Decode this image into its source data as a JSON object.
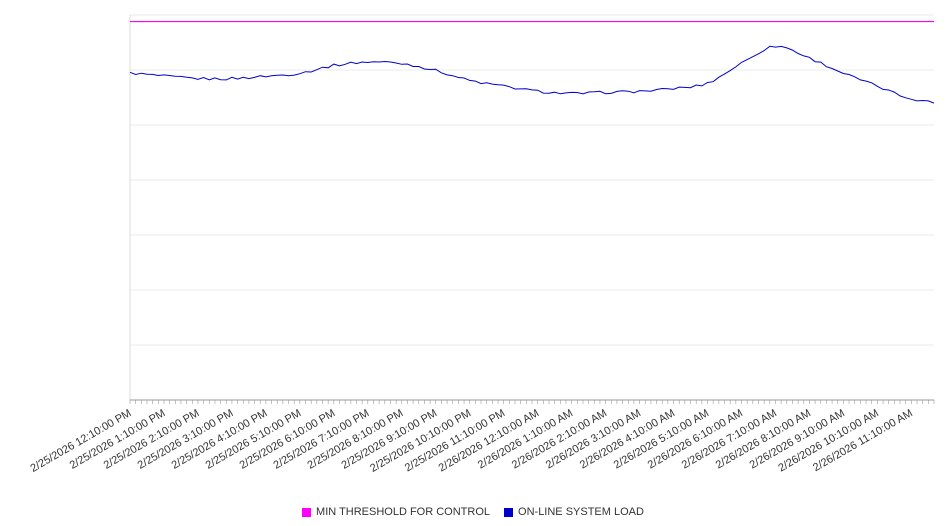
{
  "chart_data": {
    "type": "line",
    "title": "",
    "x_axis": {
      "tick_interval_minutes": 10,
      "label_interval_minutes": 60,
      "minor_tick_count": 143,
      "categories": [
        "2/25/2026 12:10:00 PM",
        "2/25/2026 1:10:00 PM",
        "2/25/2026 2:10:00 PM",
        "2/25/2026 3:10:00 PM",
        "2/25/2026 4:10:00 PM",
        "2/25/2026 5:10:00 PM",
        "2/25/2026 6:10:00 PM",
        "2/25/2026 7:10:00 PM",
        "2/25/2026 8:10:00 PM",
        "2/25/2026 9:10:00 PM",
        "2/25/2026 10:10:00 PM",
        "2/25/2026 11:10:00 PM",
        "2/26/2026 12:10:00 AM",
        "2/26/2026 1:10:00 AM",
        "2/26/2026 2:10:00 AM",
        "2/26/2026 3:10:00 AM",
        "2/26/2026 4:10:00 AM",
        "2/26/2026 5:10:00 AM",
        "2/26/2026 6:10:00 AM",
        "2/26/2026 7:10:00 AM",
        "2/26/2026 8:10:00 AM",
        "2/26/2026 9:10:00 AM",
        "2/26/2026 10:10:00 AM",
        "2/26/2026 11:10:00 AM"
      ]
    },
    "y_axis": {
      "ylim": [
        0,
        100
      ],
      "labels_visible": false,
      "grid_divisions": 7,
      "grid_on": true
    },
    "series": [
      {
        "name": "MIN THRESHOLD FOR CONTROL",
        "kind": "threshold",
        "color": "#ff00ff",
        "value": 98.3
      },
      {
        "name": "ON-LINE SYSTEM LOAD",
        "kind": "line",
        "color": "#0000cd",
        "hourly_values": [
          84.9,
          84.1,
          83.5,
          83.5,
          84.1,
          84.9,
          86.9,
          87.8,
          87.4,
          85.6,
          83.0,
          81.5,
          80.2,
          79.6,
          79.9,
          80.2,
          80.9,
          82.3,
          87.5,
          91.9,
          88.8,
          84.9,
          81.5,
          78.3
        ]
      }
    ],
    "legend_position": "bottom"
  }
}
